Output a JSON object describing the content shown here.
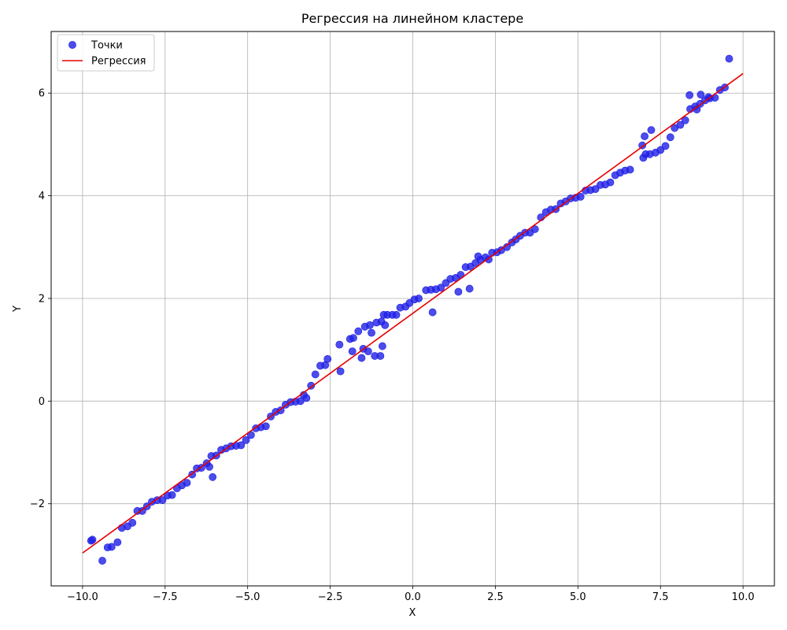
{
  "chart_data": {
    "type": "scatter",
    "title": "Регрессия на линейном кластере",
    "xlabel": "X",
    "ylabel": "Y",
    "xlim": [
      -10.95,
      10.95
    ],
    "ylim": [
      -3.6,
      7.2
    ],
    "xticks": [
      -10.0,
      -7.5,
      -5.0,
      -2.5,
      0.0,
      2.5,
      5.0,
      7.5,
      10.0
    ],
    "xtick_labels": [
      "−10.0",
      "−7.5",
      "−5.0",
      "−2.5",
      "0.0",
      "2.5",
      "5.0",
      "7.5",
      "10.0"
    ],
    "yticks": [
      -2,
      0,
      2,
      4,
      6
    ],
    "ytick_labels": [
      "−2",
      "0",
      "2",
      "4",
      "6"
    ],
    "grid": true,
    "legend_position": "top-left",
    "colors": {
      "points": "#1f1fe6",
      "line": "#e60000"
    },
    "series": [
      {
        "name": "Точки",
        "kind": "scatter",
        "points": [
          [
            -9.74,
            -2.72
          ],
          [
            -9.7,
            -2.7
          ],
          [
            -9.4,
            -3.11
          ],
          [
            -9.24,
            -2.85
          ],
          [
            -9.12,
            -2.84
          ],
          [
            -8.94,
            -2.75
          ],
          [
            -8.81,
            -2.47
          ],
          [
            -8.64,
            -2.44
          ],
          [
            -8.49,
            -2.37
          ],
          [
            -8.34,
            -2.14
          ],
          [
            -8.19,
            -2.14
          ],
          [
            -8.05,
            -2.05
          ],
          [
            -7.9,
            -1.96
          ],
          [
            -7.74,
            -1.93
          ],
          [
            -7.58,
            -1.93
          ],
          [
            -7.43,
            -1.84
          ],
          [
            -7.29,
            -1.83
          ],
          [
            -7.14,
            -1.7
          ],
          [
            -6.99,
            -1.64
          ],
          [
            -6.84,
            -1.59
          ],
          [
            -6.68,
            -1.43
          ],
          [
            -6.54,
            -1.31
          ],
          [
            -6.4,
            -1.3
          ],
          [
            -6.24,
            -1.21
          ],
          [
            -6.16,
            -1.28
          ],
          [
            -6.1,
            -1.07
          ],
          [
            -6.06,
            -1.48
          ],
          [
            -5.95,
            -1.06
          ],
          [
            -5.8,
            -0.95
          ],
          [
            -5.65,
            -0.92
          ],
          [
            -5.5,
            -0.88
          ],
          [
            -5.35,
            -0.87
          ],
          [
            -5.2,
            -0.86
          ],
          [
            -5.05,
            -0.76
          ],
          [
            -4.9,
            -0.66
          ],
          [
            -4.75,
            -0.53
          ],
          [
            -4.6,
            -0.51
          ],
          [
            -4.45,
            -0.49
          ],
          [
            -4.3,
            -0.3
          ],
          [
            -4.15,
            -0.21
          ],
          [
            -4.0,
            -0.18
          ],
          [
            -3.85,
            -0.07
          ],
          [
            -3.7,
            -0.02
          ],
          [
            -3.55,
            -0.01
          ],
          [
            -3.4,
            0.0
          ],
          [
            -3.3,
            0.12
          ],
          [
            -3.22,
            0.06
          ],
          [
            -3.08,
            0.3
          ],
          [
            -2.95,
            0.52
          ],
          [
            -2.8,
            0.69
          ],
          [
            -2.65,
            0.7
          ],
          [
            -2.58,
            0.82
          ],
          [
            -2.22,
            1.1
          ],
          [
            -2.19,
            0.58
          ],
          [
            -1.9,
            1.21
          ],
          [
            -1.8,
            1.23
          ],
          [
            -1.83,
            0.97
          ],
          [
            -1.65,
            1.36
          ],
          [
            -1.55,
            0.84
          ],
          [
            -1.5,
            1.02
          ],
          [
            -1.45,
            1.45
          ],
          [
            -1.35,
            0.97
          ],
          [
            -1.3,
            1.48
          ],
          [
            -1.25,
            1.33
          ],
          [
            -1.15,
            0.88
          ],
          [
            -1.1,
            1.53
          ],
          [
            -0.98,
            0.88
          ],
          [
            -0.95,
            1.55
          ],
          [
            -0.92,
            1.07
          ],
          [
            -0.88,
            1.68
          ],
          [
            -0.84,
            1.48
          ],
          [
            -0.77,
            1.68
          ],
          [
            -0.62,
            1.68
          ],
          [
            -0.5,
            1.68
          ],
          [
            -0.38,
            1.82
          ],
          [
            -0.22,
            1.84
          ],
          [
            -0.1,
            1.91
          ],
          [
            0.05,
            1.98
          ],
          [
            0.18,
            2.0
          ],
          [
            0.4,
            2.16
          ],
          [
            0.55,
            2.17
          ],
          [
            0.6,
            1.73
          ],
          [
            0.7,
            2.18
          ],
          [
            0.85,
            2.21
          ],
          [
            1.0,
            2.3
          ],
          [
            1.14,
            2.38
          ],
          [
            1.3,
            2.4
          ],
          [
            1.38,
            2.13
          ],
          [
            1.45,
            2.46
          ],
          [
            1.6,
            2.61
          ],
          [
            1.72,
            2.19
          ],
          [
            1.75,
            2.62
          ],
          [
            1.9,
            2.69
          ],
          [
            1.98,
            2.82
          ],
          [
            2.05,
            2.75
          ],
          [
            2.2,
            2.8
          ],
          [
            2.3,
            2.76
          ],
          [
            2.4,
            2.89
          ],
          [
            2.55,
            2.9
          ],
          [
            2.68,
            2.94
          ],
          [
            2.85,
            3.0
          ],
          [
            3.0,
            3.09
          ],
          [
            3.12,
            3.15
          ],
          [
            3.25,
            3.22
          ],
          [
            3.4,
            3.28
          ],
          [
            3.55,
            3.28
          ],
          [
            3.7,
            3.35
          ],
          [
            3.88,
            3.58
          ],
          [
            4.03,
            3.68
          ],
          [
            4.18,
            3.73
          ],
          [
            4.33,
            3.74
          ],
          [
            4.48,
            3.85
          ],
          [
            4.63,
            3.89
          ],
          [
            4.78,
            3.95
          ],
          [
            4.93,
            3.96
          ],
          [
            5.08,
            3.98
          ],
          [
            5.23,
            4.1
          ],
          [
            5.38,
            4.11
          ],
          [
            5.53,
            4.13
          ],
          [
            5.68,
            4.21
          ],
          [
            5.83,
            4.22
          ],
          [
            5.98,
            4.26
          ],
          [
            6.13,
            4.4
          ],
          [
            6.28,
            4.45
          ],
          [
            6.43,
            4.49
          ],
          [
            6.58,
            4.51
          ],
          [
            6.95,
            4.98
          ],
          [
            6.98,
            4.74
          ],
          [
            7.02,
            5.16
          ],
          [
            7.05,
            4.81
          ],
          [
            7.18,
            4.81
          ],
          [
            7.22,
            5.28
          ],
          [
            7.35,
            4.84
          ],
          [
            7.5,
            4.89
          ],
          [
            7.65,
            4.97
          ],
          [
            7.8,
            5.14
          ],
          [
            7.93,
            5.32
          ],
          [
            8.1,
            5.38
          ],
          [
            8.25,
            5.47
          ],
          [
            8.38,
            5.96
          ],
          [
            8.4,
            5.69
          ],
          [
            8.55,
            5.74
          ],
          [
            8.6,
            5.68
          ],
          [
            8.7,
            5.79
          ],
          [
            8.72,
            5.97
          ],
          [
            8.85,
            5.86
          ],
          [
            8.95,
            5.92
          ],
          [
            9.0,
            5.9
          ],
          [
            9.15,
            5.91
          ],
          [
            9.3,
            6.06
          ],
          [
            9.45,
            6.11
          ],
          [
            9.58,
            6.67
          ]
        ]
      },
      {
        "name": "Регрессия",
        "kind": "line",
        "points": [
          [
            -10.0,
            -2.96
          ],
          [
            10.0,
            6.38
          ]
        ]
      }
    ]
  }
}
